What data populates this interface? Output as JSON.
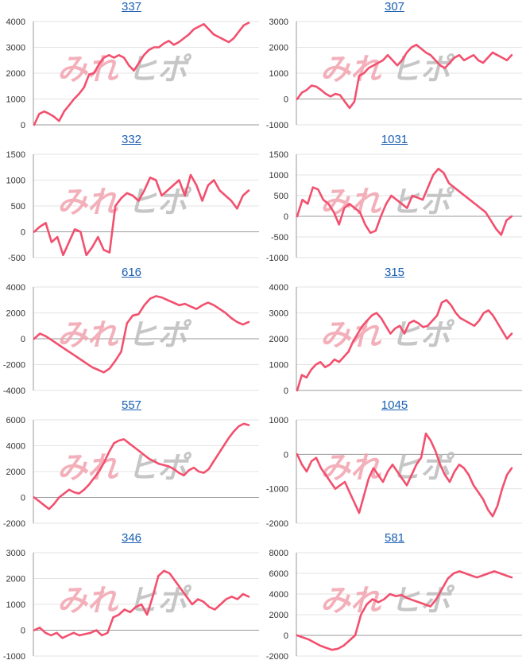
{
  "colors": {
    "line": "#f2506e",
    "title": "#1a5fb4",
    "watermark_red": "#f2a3ae",
    "watermark_gray": "#bdbdbd"
  },
  "watermark": {
    "text_a": "みれ",
    "text_b": "ヒポ"
  },
  "chart_data": [
    {
      "type": "line",
      "title": "337",
      "yticks": [
        4000,
        3000,
        2000,
        1000,
        0
      ],
      "ylim": [
        0,
        4000
      ],
      "values": [
        0,
        420,
        520,
        430,
        310,
        150,
        520,
        760,
        1000,
        1200,
        1450,
        1950,
        2000,
        2350,
        2600,
        2700,
        2600,
        2700,
        2600,
        2300,
        2100,
        2400,
        2700,
        2900,
        3000,
        3000,
        3150,
        3250,
        3100,
        3200,
        3350,
        3500,
        3700,
        3800,
        3900,
        3700,
        3500,
        3400,
        3300,
        3200,
        3350,
        3600,
        3850,
        3950
      ]
    },
    {
      "type": "line",
      "title": "307",
      "yticks": [
        3000,
        2000,
        1000,
        0,
        -1000
      ],
      "ylim": [
        -1000,
        3000
      ],
      "values": [
        0,
        250,
        350,
        520,
        480,
        350,
        200,
        100,
        200,
        150,
        -100,
        -350,
        -100,
        900,
        1000,
        1200,
        1300,
        1400,
        1500,
        1700,
        1500,
        1300,
        1500,
        1800,
        2000,
        2100,
        1950,
        1800,
        1700,
        1500,
        1300,
        1200,
        1400,
        1600,
        1700,
        1500,
        1600,
        1700,
        1500,
        1400,
        1600,
        1800,
        1700,
        1600,
        1500,
        1700
      ]
    },
    {
      "type": "line",
      "title": "332",
      "yticks": [
        1500,
        1000,
        500,
        0,
        -500
      ],
      "ylim": [
        -500,
        1500
      ],
      "values": [
        0,
        100,
        170,
        -200,
        -100,
        -450,
        -200,
        50,
        0,
        -450,
        -300,
        -100,
        -350,
        -400,
        500,
        650,
        750,
        700,
        600,
        800,
        1050,
        1000,
        700,
        800,
        900,
        1000,
        700,
        1100,
        900,
        600,
        900,
        1000,
        800,
        700,
        600,
        450,
        700,
        800
      ]
    },
    {
      "type": "line",
      "title": "1031",
      "yticks": [
        1500,
        1000,
        500,
        0,
        -500,
        -1000
      ],
      "ylim": [
        -1000,
        1500
      ],
      "values": [
        0,
        400,
        300,
        700,
        650,
        400,
        300,
        100,
        -200,
        200,
        300,
        200,
        100,
        -200,
        -400,
        -350,
        0,
        300,
        500,
        400,
        300,
        200,
        500,
        450,
        400,
        700,
        1000,
        1150,
        1050,
        800,
        700,
        600,
        500,
        400,
        300,
        200,
        100,
        -100,
        -300,
        -450,
        -100,
        0
      ]
    },
    {
      "type": "line",
      "title": "616",
      "yticks": [
        4000,
        2000,
        0,
        -2000,
        -4000
      ],
      "ylim": [
        -4000,
        4000
      ],
      "values": [
        0,
        400,
        200,
        -100,
        -400,
        -700,
        -1000,
        -1300,
        -1600,
        -1900,
        -2200,
        -2400,
        -2600,
        -2300,
        -1700,
        -1000,
        1200,
        1800,
        1900,
        2600,
        3100,
        3300,
        3200,
        3000,
        2800,
        2600,
        2700,
        2500,
        2300,
        2600,
        2800,
        2600,
        2300,
        2000,
        1600,
        1300,
        1100,
        1300
      ]
    },
    {
      "type": "line",
      "title": "315",
      "yticks": [
        4000,
        3000,
        2000,
        1000,
        0
      ],
      "ylim": [
        0,
        4000
      ],
      "values": [
        0,
        600,
        500,
        800,
        1000,
        1100,
        900,
        1000,
        1200,
        1100,
        1300,
        1500,
        1900,
        2200,
        2500,
        2700,
        2900,
        3000,
        2800,
        2500,
        2200,
        2400,
        2500,
        2200,
        2600,
        2700,
        2600,
        2450,
        2500,
        2700,
        2900,
        3400,
        3500,
        3300,
        3000,
        2800,
        2700,
        2600,
        2500,
        2700,
        3000,
        3100,
        2900,
        2600,
        2300,
        2000,
        2200
      ]
    },
    {
      "type": "line",
      "title": "557",
      "yticks": [
        6000,
        4000,
        2000,
        0,
        -2000
      ],
      "ylim": [
        -2000,
        6000
      ],
      "values": [
        0,
        -300,
        -600,
        -900,
        -500,
        0,
        300,
        600,
        400,
        300,
        600,
        1000,
        1500,
        2000,
        2700,
        3500,
        4200,
        4400,
        4500,
        4200,
        3900,
        3600,
        3300,
        3000,
        2800,
        2600,
        2500,
        2400,
        2200,
        1900,
        1700,
        2100,
        2300,
        2000,
        1900,
        2200,
        2800,
        3400,
        4000,
        4600,
        5100,
        5500,
        5700,
        5600
      ]
    },
    {
      "type": "line",
      "title": "1045",
      "yticks": [
        1000,
        0,
        -1000,
        -2000
      ],
      "ylim": [
        -2000,
        1000
      ],
      "values": [
        0,
        -300,
        -500,
        -200,
        -100,
        -400,
        -600,
        -800,
        -1000,
        -900,
        -800,
        -1100,
        -1400,
        -1700,
        -1200,
        -700,
        -400,
        -600,
        -800,
        -500,
        -300,
        -500,
        -700,
        -900,
        -600,
        -300,
        -100,
        600,
        400,
        100,
        -300,
        -600,
        -800,
        -500,
        -300,
        -400,
        -600,
        -900,
        -1100,
        -1300,
        -1600,
        -1800,
        -1500,
        -1000,
        -600,
        -400
      ]
    },
    {
      "type": "line",
      "title": "346",
      "yticks": [
        3000,
        2000,
        1000,
        0,
        -1000
      ],
      "ylim": [
        -1000,
        3000
      ],
      "values": [
        0,
        100,
        -100,
        -200,
        -100,
        -300,
        -200,
        -100,
        -200,
        -150,
        -100,
        0,
        -200,
        -100,
        500,
        600,
        800,
        700,
        900,
        1000,
        600,
        1300,
        2100,
        2300,
        2200,
        1900,
        1600,
        1300,
        1000,
        1200,
        1100,
        900,
        800,
        1000,
        1200,
        1300,
        1200,
        1400,
        1300
      ]
    },
    {
      "type": "line",
      "title": "581",
      "yticks": [
        8000,
        6000,
        4000,
        2000,
        0,
        -2000
      ],
      "ylim": [
        -2000,
        8000
      ],
      "values": [
        0,
        -200,
        -400,
        -700,
        -1000,
        -1200,
        -1400,
        -1300,
        -1000,
        -500,
        0,
        2000,
        3000,
        3500,
        3200,
        3500,
        4000,
        3800,
        3900,
        3600,
        3400,
        3200,
        3000,
        2800,
        3500,
        4500,
        5500,
        6000,
        6200,
        6000,
        5800,
        5600,
        5800,
        6000,
        6200,
        6000,
        5800,
        5600
      ]
    }
  ]
}
